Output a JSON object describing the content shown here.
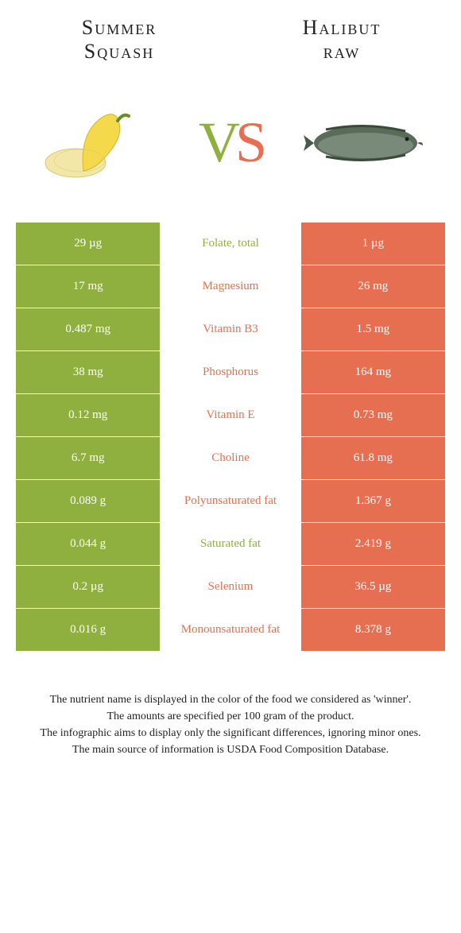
{
  "colors": {
    "green": "#8fb03e",
    "orange": "#e76f51",
    "white": "#ffffff",
    "text": "#222222"
  },
  "left_food": {
    "title_line1": "Summer",
    "title_line2": "Squash"
  },
  "right_food": {
    "title_line1": "Halibut",
    "title_line2": "raw"
  },
  "vs": {
    "v": "V",
    "s": "S"
  },
  "rows": [
    {
      "left": "29 µg",
      "label": "Folate, total",
      "right": "1 µg",
      "winner": "left"
    },
    {
      "left": "17 mg",
      "label": "Magnesium",
      "right": "26 mg",
      "winner": "right"
    },
    {
      "left": "0.487 mg",
      "label": "Vitamin B3",
      "right": "1.5 mg",
      "winner": "right"
    },
    {
      "left": "38 mg",
      "label": "Phosphorus",
      "right": "164 mg",
      "winner": "right"
    },
    {
      "left": "0.12 mg",
      "label": "Vitamin E",
      "right": "0.73 mg",
      "winner": "right"
    },
    {
      "left": "6.7 mg",
      "label": "Choline",
      "right": "61.8 mg",
      "winner": "right"
    },
    {
      "left": "0.089 g",
      "label": "Polyunsaturated fat",
      "right": "1.367 g",
      "winner": "right"
    },
    {
      "left": "0.044 g",
      "label": "Saturated fat",
      "right": "2.419 g",
      "winner": "left"
    },
    {
      "left": "0.2 µg",
      "label": "Selenium",
      "right": "36.5 µg",
      "winner": "right"
    },
    {
      "left": "0.016 g",
      "label": "Monounsaturated fat",
      "right": "8.378 g",
      "winner": "right"
    }
  ],
  "footer": {
    "l1": "The nutrient name is displayed in the color of the food we considered as 'winner'.",
    "l2": "The amounts are specified per 100 gram of the product.",
    "l3": "The infographic aims to display only the significant differences, ignoring minor ones.",
    "l4": "The main source of information is USDA Food Composition Database."
  }
}
